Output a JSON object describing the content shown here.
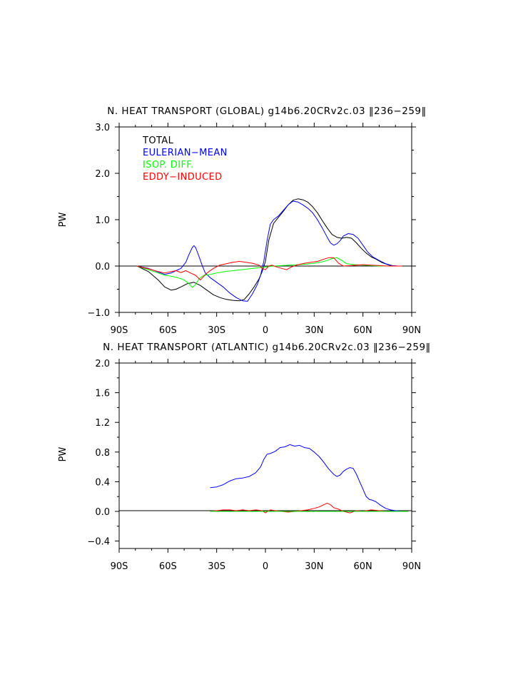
{
  "chart_data": [
    {
      "type": "line",
      "title": "N. HEAT TRANSPORT (GLOBAL) g14b6.20CRv2c.03 ‖236−259‖",
      "xlabel": "",
      "ylabel": "PW",
      "xlim": [
        -90,
        90
      ],
      "ylim": [
        -1.0,
        3.0
      ],
      "xticks": [
        -90,
        -60,
        -30,
        0,
        30,
        60,
        90
      ],
      "xtick_labels": [
        "90S",
        "60S",
        "30S",
        "0",
        "30N",
        "60N",
        "90N"
      ],
      "yticks": [
        -1.0,
        0.0,
        1.0,
        2.0,
        3.0
      ],
      "ytick_labels": [
        "−1.0",
        "0.0",
        "1.0",
        "2.0",
        "3.0"
      ],
      "legend": [
        "TOTAL",
        "EULERIAN−MEAN",
        "ISOP. DIFF.",
        "EDDY−INDUCED"
      ],
      "series": [
        {
          "name": "TOTAL",
          "color": "#000000",
          "x": [
            -79,
            -72,
            -66,
            -62,
            -58,
            -55,
            -52,
            -48,
            -44,
            -40,
            -36,
            -32,
            -28,
            -24,
            -20,
            -16,
            -13,
            -10,
            -7,
            -4,
            -2,
            0,
            2,
            5,
            8,
            11,
            14,
            17,
            20,
            23,
            26,
            29,
            32,
            35,
            38,
            41,
            44,
            47,
            50,
            53,
            56,
            59,
            62,
            65,
            68,
            72,
            76,
            80,
            84
          ],
          "y": [
            0.0,
            -0.12,
            -0.3,
            -0.45,
            -0.52,
            -0.5,
            -0.45,
            -0.38,
            -0.35,
            -0.42,
            -0.52,
            -0.62,
            -0.68,
            -0.72,
            -0.74,
            -0.75,
            -0.72,
            -0.6,
            -0.45,
            -0.28,
            -0.12,
            0.1,
            0.55,
            0.92,
            1.05,
            1.18,
            1.32,
            1.42,
            1.45,
            1.43,
            1.38,
            1.28,
            1.15,
            0.98,
            0.82,
            0.68,
            0.62,
            0.6,
            0.62,
            0.6,
            0.5,
            0.38,
            0.28,
            0.2,
            0.15,
            0.07,
            0.02,
            0.0,
            0.0
          ]
        },
        {
          "name": "EULERIAN−MEAN",
          "color": "#0000ff",
          "x": [
            -79,
            -72,
            -66,
            -62,
            -58,
            -55,
            -52,
            -49,
            -47,
            -45,
            -44,
            -43,
            -41,
            -39,
            -37,
            -34,
            -30,
            -26,
            -22,
            -18,
            -14,
            -11,
            -8,
            -5,
            -3,
            -1,
            1,
            3,
            5,
            8,
            11,
            14,
            17,
            20,
            23,
            26,
            29,
            32,
            35,
            38,
            40,
            42,
            44,
            46,
            48,
            51,
            54,
            57,
            60,
            63,
            66,
            70,
            74,
            78,
            82
          ],
          "y": [
            0.0,
            -0.05,
            -0.13,
            -0.18,
            -0.15,
            -0.1,
            -0.05,
            0.08,
            0.25,
            0.4,
            0.44,
            0.4,
            0.22,
            0.02,
            -0.15,
            -0.25,
            -0.35,
            -0.45,
            -0.58,
            -0.68,
            -0.75,
            -0.76,
            -0.6,
            -0.4,
            -0.2,
            0.1,
            0.55,
            0.9,
            1.0,
            1.08,
            1.2,
            1.32,
            1.4,
            1.38,
            1.32,
            1.25,
            1.15,
            1.0,
            0.82,
            0.62,
            0.5,
            0.45,
            0.48,
            0.55,
            0.65,
            0.7,
            0.68,
            0.6,
            0.45,
            0.3,
            0.2,
            0.12,
            0.05,
            0.01,
            0.0
          ]
        },
        {
          "name": "ISOP. DIFF.",
          "color": "#00ff00",
          "x": [
            -79,
            -72,
            -66,
            -62,
            -58,
            -54,
            -50,
            -47,
            -45,
            -43,
            -41,
            -38,
            -34,
            -30,
            -25,
            -20,
            -15,
            -10,
            -5,
            0,
            5,
            10,
            15,
            20,
            25,
            30,
            35,
            38,
            41,
            44,
            47,
            50,
            55,
            60,
            65,
            70,
            75,
            80,
            84
          ],
          "y": [
            0.0,
            -0.08,
            -0.15,
            -0.2,
            -0.22,
            -0.25,
            -0.3,
            -0.38,
            -0.46,
            -0.4,
            -0.28,
            -0.2,
            -0.18,
            -0.15,
            -0.12,
            -0.1,
            -0.08,
            -0.06,
            -0.04,
            -0.02,
            0.0,
            0.01,
            0.02,
            0.03,
            0.04,
            0.06,
            0.09,
            0.12,
            0.16,
            0.18,
            0.12,
            0.05,
            0.03,
            0.02,
            0.01,
            0.0,
            0.0,
            0.0,
            0.0
          ]
        },
        {
          "name": "EDDY−INDUCED",
          "color": "#ff0000",
          "x": [
            -79,
            -72,
            -66,
            -62,
            -58,
            -55,
            -52,
            -49,
            -46,
            -43,
            -40,
            -36,
            -32,
            -28,
            -24,
            -20,
            -16,
            -12,
            -8,
            -4,
            -2,
            0,
            2,
            4,
            7,
            10,
            13,
            16,
            20,
            24,
            28,
            32,
            36,
            39,
            42,
            45,
            48,
            52,
            56,
            60,
            65,
            70,
            75,
            80,
            84
          ],
          "y": [
            0.0,
            -0.06,
            -0.12,
            -0.15,
            -0.12,
            -0.1,
            -0.14,
            -0.1,
            -0.15,
            -0.2,
            -0.3,
            -0.15,
            -0.05,
            0.02,
            0.05,
            0.08,
            0.1,
            0.08,
            0.06,
            0.02,
            -0.05,
            -0.08,
            0.0,
            0.02,
            -0.02,
            -0.05,
            -0.08,
            -0.02,
            0.03,
            0.06,
            0.08,
            0.1,
            0.15,
            0.18,
            0.18,
            0.06,
            0.0,
            0.01,
            0.02,
            0.03,
            0.02,
            0.01,
            0.0,
            0.0,
            0.0
          ]
        }
      ]
    },
    {
      "type": "line",
      "title": "N. HEAT TRANSPORT (ATLANTIC) g14b6.20CRv2c.03 ‖236−259‖",
      "xlabel": "",
      "ylabel": "PW",
      "xlim": [
        -90,
        90
      ],
      "ylim": [
        -0.5,
        2.0
      ],
      "xticks": [
        -90,
        -60,
        -30,
        0,
        30,
        60,
        90
      ],
      "xtick_labels": [
        "90S",
        "60S",
        "30S",
        "0",
        "30N",
        "60N",
        "90N"
      ],
      "yticks": [
        -0.4,
        0.0,
        0.4,
        0.8,
        1.2,
        1.6,
        2.0
      ],
      "ytick_labels": [
        "−0.4",
        "0.0",
        "0.4",
        "0.8",
        "1.2",
        "1.6",
        "2.0"
      ],
      "series": [
        {
          "name": "EULERIAN−MEAN",
          "color": "#0000ff",
          "x": [
            -34,
            -30,
            -26,
            -22,
            -18,
            -14,
            -10,
            -6,
            -3,
            -1,
            1,
            3,
            6,
            9,
            12,
            15,
            18,
            21,
            24,
            27,
            30,
            33,
            36,
            39,
            42,
            44,
            46,
            48,
            50,
            52,
            54,
            56,
            58,
            60,
            62,
            64,
            66,
            68,
            71,
            74,
            77,
            80,
            84,
            88
          ],
          "y": [
            0.32,
            0.33,
            0.36,
            0.41,
            0.44,
            0.45,
            0.47,
            0.52,
            0.6,
            0.7,
            0.77,
            0.78,
            0.81,
            0.86,
            0.87,
            0.9,
            0.88,
            0.89,
            0.86,
            0.85,
            0.8,
            0.74,
            0.66,
            0.57,
            0.5,
            0.47,
            0.49,
            0.54,
            0.57,
            0.59,
            0.58,
            0.5,
            0.4,
            0.3,
            0.2,
            0.16,
            0.15,
            0.13,
            0.08,
            0.04,
            0.02,
            0.01,
            0.0,
            0.0
          ]
        },
        {
          "name": "EDDY−INDUCED",
          "color": "#ff0000",
          "x": [
            -34,
            -30,
            -26,
            -22,
            -18,
            -14,
            -10,
            -6,
            -2,
            0,
            3,
            6,
            10,
            14,
            18,
            22,
            26,
            30,
            33,
            36,
            38,
            40,
            42,
            45,
            48,
            52,
            56,
            60,
            65,
            70,
            75,
            80,
            88
          ],
          "y": [
            0.0,
            0.01,
            0.02,
            0.02,
            0.01,
            0.02,
            0.01,
            0.02,
            0.01,
            -0.02,
            0.02,
            0.01,
            0.0,
            -0.01,
            0.0,
            0.01,
            0.02,
            0.04,
            0.06,
            0.09,
            0.11,
            0.09,
            0.05,
            0.03,
            0.0,
            -0.02,
            0.01,
            0.0,
            0.02,
            0.01,
            0.0,
            0.0,
            0.0
          ]
        },
        {
          "name": "ISOP. DIFF.",
          "color": "#00ff00",
          "x": [
            -34,
            -20,
            0,
            20,
            40,
            60,
            88
          ],
          "y": [
            0.0,
            0.0,
            0.0,
            0.0,
            0.0,
            0.0,
            0.0
          ]
        }
      ]
    }
  ]
}
